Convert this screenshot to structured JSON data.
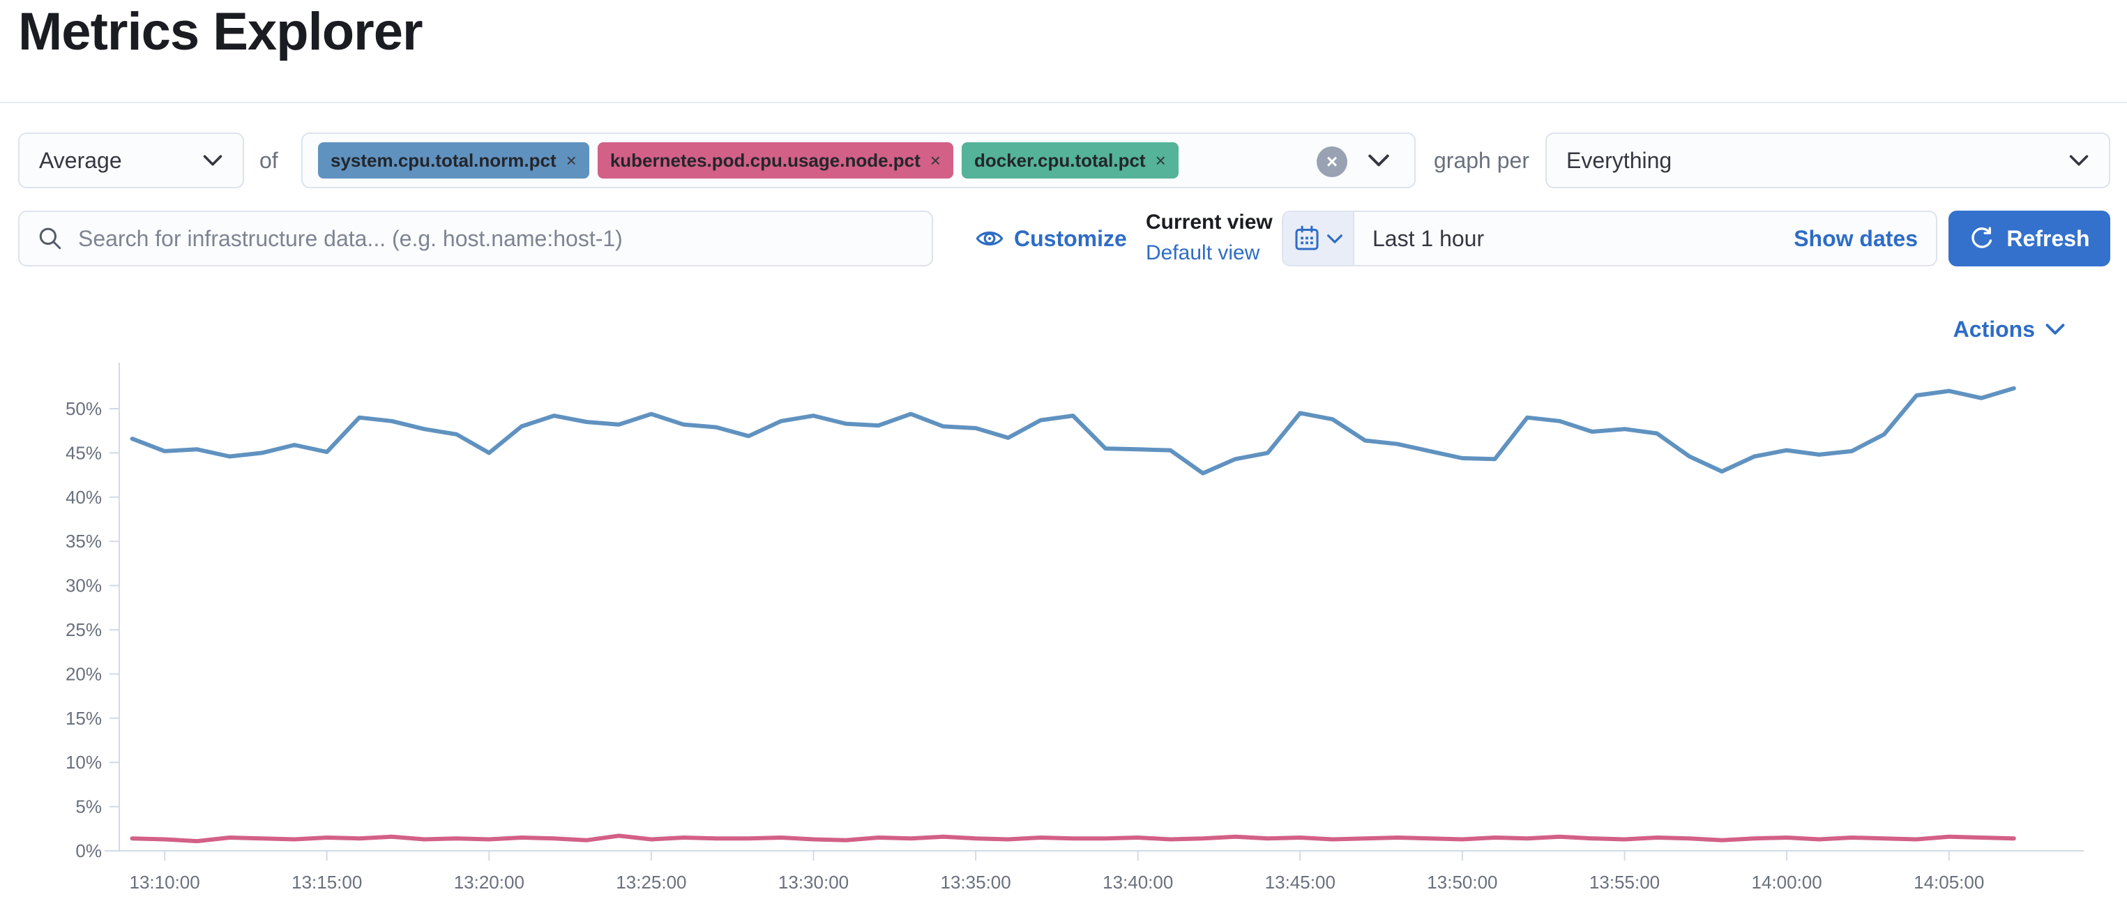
{
  "page": {
    "title": "Metrics Explorer"
  },
  "toolbar": {
    "aggregation_value": "Average",
    "of_label": "of",
    "metrics": [
      {
        "label": "system.cpu.total.norm.pct",
        "color": "#6092C0"
      },
      {
        "label": "kubernetes.pod.cpu.usage.node.pct",
        "color": "#D36086"
      },
      {
        "label": "docker.cpu.total.pct",
        "color": "#54B399"
      }
    ],
    "clear_glyph": "×",
    "pill_close_glyph": "×",
    "graph_per_label": "graph per",
    "graph_per_value": "Everything"
  },
  "search": {
    "placeholder": "Search for infrastructure data... (e.g. host.name:host-1)"
  },
  "view_controls": {
    "customize_label": "Customize",
    "current_view_label": "Current view",
    "view_name": "Default view"
  },
  "time_picker": {
    "value": "Last 1 hour",
    "show_dates_label": "Show dates",
    "refresh_label": "Refresh"
  },
  "actions": {
    "label": "Actions"
  },
  "colors": {
    "link_blue": "#2e6cc6",
    "button_blue": "#3371cd",
    "axis_line": "#d3dae6",
    "tick_text": "#69707d",
    "series_blue": "#6092C0",
    "series_pink": "#D36086",
    "pill_green": "#54B399"
  },
  "chart_data": {
    "type": "line",
    "title": "",
    "xlabel": "",
    "ylabel": "",
    "x_start": "13:09:00",
    "x_step_seconds": 60,
    "x_tick_labels": [
      "13:10:00",
      "13:15:00",
      "13:20:00",
      "13:25:00",
      "13:30:00",
      "13:35:00",
      "13:40:00",
      "13:45:00",
      "13:50:00",
      "13:55:00",
      "14:00:00",
      "14:05:00"
    ],
    "y_tick_labels": [
      "0%",
      "5%",
      "10%",
      "15%",
      "20%",
      "25%",
      "30%",
      "35%",
      "40%",
      "45%",
      "50%"
    ],
    "ylim": [
      0,
      55
    ],
    "y_unit": "%",
    "grid": false,
    "legend": "none",
    "series": [
      {
        "name": "system.cpu.total.norm.pct",
        "color": "#6092C0",
        "values": [
          46.6,
          45.2,
          45.4,
          44.6,
          45.0,
          45.9,
          45.1,
          49.0,
          48.6,
          47.7,
          47.1,
          45.0,
          48.0,
          49.2,
          48.5,
          48.2,
          49.4,
          48.2,
          47.9,
          46.9,
          48.6,
          49.2,
          48.3,
          48.1,
          49.4,
          48.0,
          47.8,
          46.7,
          48.7,
          49.2,
          45.5,
          45.4,
          45.3,
          42.7,
          44.3,
          45.0,
          49.5,
          48.8,
          46.4,
          46.0,
          45.2,
          44.4,
          44.3,
          49.0,
          48.6,
          47.4,
          47.7,
          47.2,
          44.6,
          42.9,
          44.6,
          45.3,
          44.8,
          45.2,
          47.1,
          51.5,
          52.0,
          51.2,
          52.3
        ]
      },
      {
        "name": "kubernetes.pod.cpu.usage.node.pct",
        "color": "#D36086",
        "values": [
          1.4,
          1.3,
          1.1,
          1.5,
          1.4,
          1.3,
          1.5,
          1.4,
          1.6,
          1.3,
          1.4,
          1.3,
          1.5,
          1.4,
          1.2,
          1.7,
          1.3,
          1.5,
          1.4,
          1.4,
          1.5,
          1.3,
          1.2,
          1.5,
          1.4,
          1.6,
          1.4,
          1.3,
          1.5,
          1.4,
          1.4,
          1.5,
          1.3,
          1.4,
          1.6,
          1.4,
          1.5,
          1.3,
          1.4,
          1.5,
          1.4,
          1.3,
          1.5,
          1.4,
          1.6,
          1.4,
          1.3,
          1.5,
          1.4,
          1.2,
          1.4,
          1.5,
          1.3,
          1.5,
          1.4,
          1.3,
          1.6,
          1.5,
          1.4
        ]
      }
    ]
  }
}
